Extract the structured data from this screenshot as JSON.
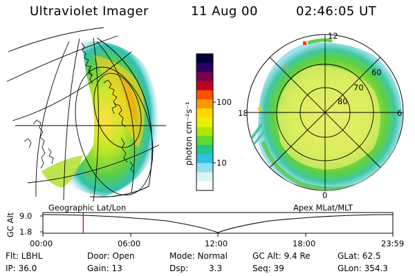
{
  "header": {
    "instrument": "Ultraviolet Imager",
    "date": "11 Aug 00",
    "time": "02:46:05 UT"
  },
  "colorbar": {
    "unit_label": "photon cm⁻²s⁻¹",
    "ticks": [
      "100",
      "10"
    ],
    "colors": [
      "#000040",
      "#2a0060",
      "#7a0050",
      "#c00020",
      "#ff5000",
      "#ff9a00",
      "#ffd800",
      "#e8f000",
      "#b0e800",
      "#60d830",
      "#20c888",
      "#30c0e0",
      "#90e0f0",
      "#d8f4f8",
      "#ffffff"
    ]
  },
  "left_panel": {
    "caption": "Geographic Lat/Lon",
    "description": "Auroral image on geographic globe"
  },
  "right_panel": {
    "caption": "Apex MLat/MLT",
    "mlt_labels": {
      "top": "12",
      "left": "18",
      "right": "6",
      "bottom": "0"
    },
    "lat_labels": [
      "60",
      "70",
      "80"
    ]
  },
  "timeline": {
    "axis_title": "GC Alt",
    "y_ticks": [
      "9.0",
      "1.8"
    ],
    "x_ticks": [
      "00:00",
      "06:00",
      "12:00",
      "18:00",
      "23:59"
    ],
    "marker_time": "02:46",
    "marker_color": "#cc0000"
  },
  "footer": {
    "flt": "Flt: LBHL",
    "ip": "IP: 36.0",
    "door": "Door: Open",
    "gain": "Gain: 13",
    "mode": "Mode: Normal",
    "dsp_label": "Dsp:",
    "dsp_value": "3.3",
    "gc_alt": "GC Alt: 9.4 Re",
    "seq": "Seq: 39",
    "glat": "GLat: 62.5",
    "glon": "GLon: 354.3"
  }
}
